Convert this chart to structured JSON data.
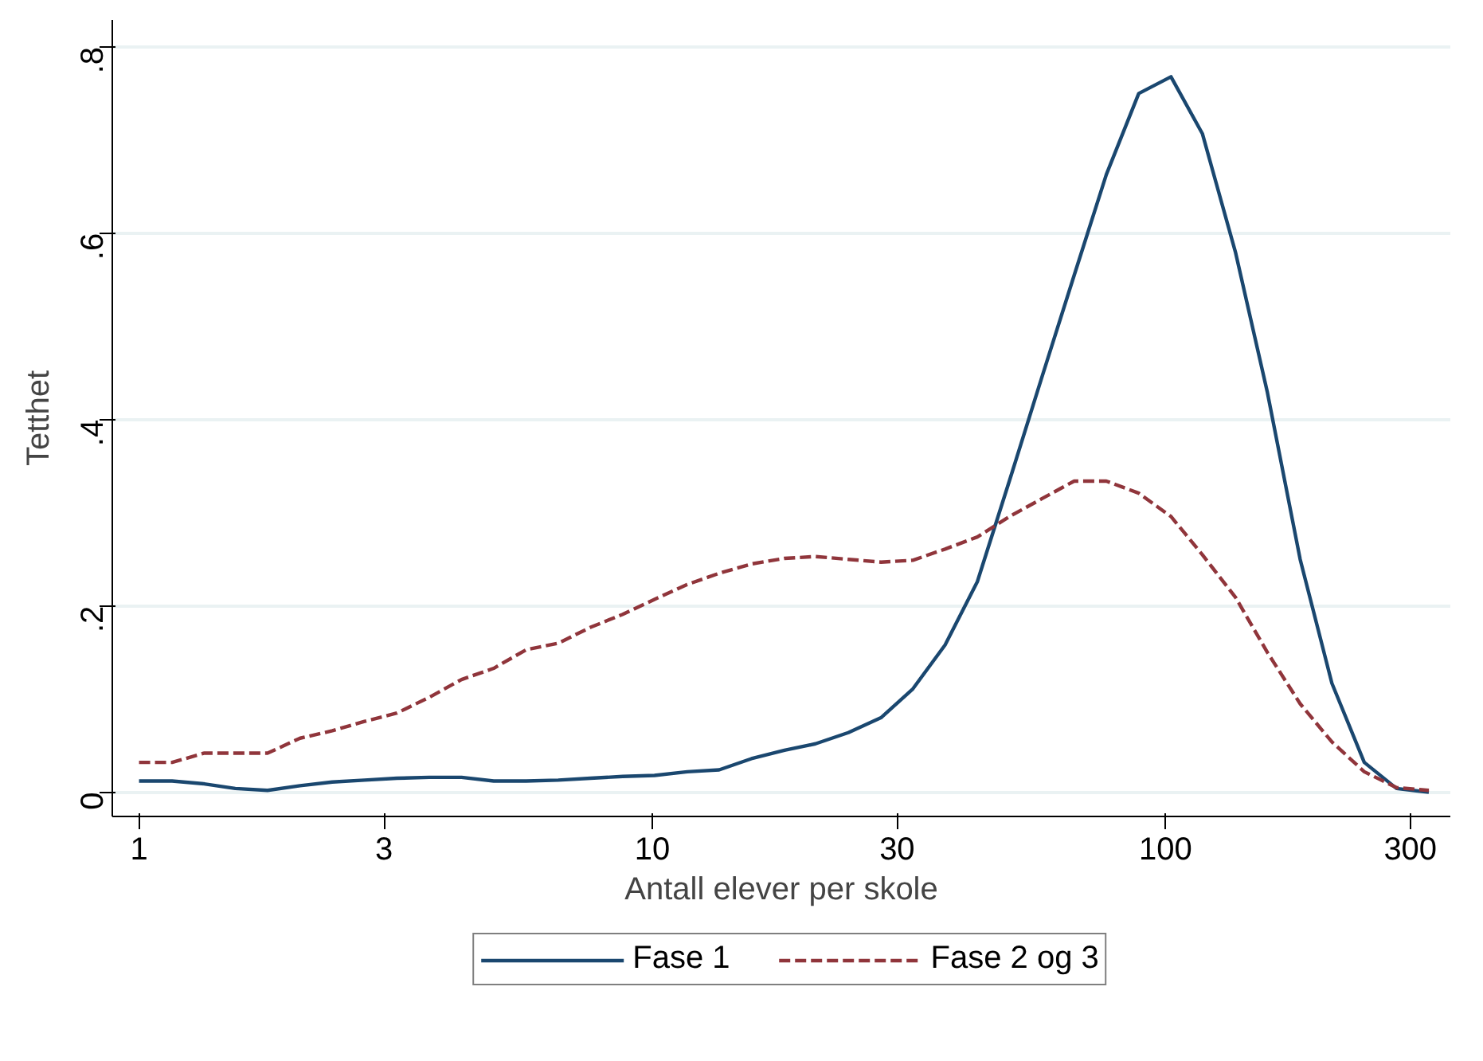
{
  "chart_data": {
    "type": "line",
    "xlabel": "Antall elever per skole",
    "ylabel": "Tetthet",
    "log": "x",
    "x": [
      1,
      1.16,
      1.34,
      1.54,
      1.78,
      2.06,
      2.38,
      2.75,
      3.18,
      3.68,
      4.25,
      4.91,
      5.68,
      6.56,
      7.58,
      8.76,
      10.1,
      11.7,
      13.5,
      15.6,
      18.1,
      20.8,
      24.1,
      27.9,
      32.2,
      37.2,
      43.0,
      49.7,
      57.4,
      66.4,
      76.7,
      88.7,
      102.5,
      118,
      137,
      158,
      183,
      211,
      244,
      282,
      326
    ],
    "series": [
      {
        "name": "Fase 1",
        "color": "#1a476f",
        "line_style": "solid",
        "values": [
          0.012,
          0.012,
          0.009,
          0.004,
          0.002,
          0.007,
          0.011,
          0.013,
          0.015,
          0.016,
          0.016,
          0.012,
          0.012,
          0.013,
          0.015,
          0.017,
          0.018,
          0.022,
          0.024,
          0.036,
          0.045,
          0.052,
          0.064,
          0.08,
          0.111,
          0.158,
          0.226,
          0.335,
          0.445,
          0.555,
          0.663,
          0.75,
          0.768,
          0.707,
          0.579,
          0.429,
          0.25,
          0.117,
          0.032,
          0.004,
          0
        ]
      },
      {
        "name": "Fase 2 og 3",
        "color": "#90353b",
        "line_style": "dashed",
        "values": [
          0.032,
          0.032,
          0.042,
          0.042,
          0.042,
          0.058,
          0.066,
          0.076,
          0.085,
          0.102,
          0.121,
          0.133,
          0.153,
          0.16,
          0.177,
          0.191,
          0.207,
          0.223,
          0.235,
          0.245,
          0.251,
          0.253,
          0.25,
          0.247,
          0.249,
          0.261,
          0.274,
          0.296,
          0.315,
          0.334,
          0.334,
          0.321,
          0.296,
          0.255,
          0.209,
          0.15,
          0.095,
          0.054,
          0.022,
          0.005,
          0.002
        ]
      }
    ],
    "xlim": [
      0.887,
      359
    ],
    "xticks": [
      1,
      3,
      10,
      30,
      100,
      300
    ],
    "ylim": [
      -0.026,
      0.829
    ],
    "yticks": [
      {
        "value": 0,
        "label": "0"
      },
      {
        "value": 0.2,
        "label": ".2"
      },
      {
        "value": 0.4,
        "label": ".4"
      },
      {
        "value": 0.6,
        "label": ".6"
      },
      {
        "value": 0.8,
        "label": ".8"
      }
    ],
    "grid": "y",
    "legend": "bottom",
    "marker": "none"
  }
}
